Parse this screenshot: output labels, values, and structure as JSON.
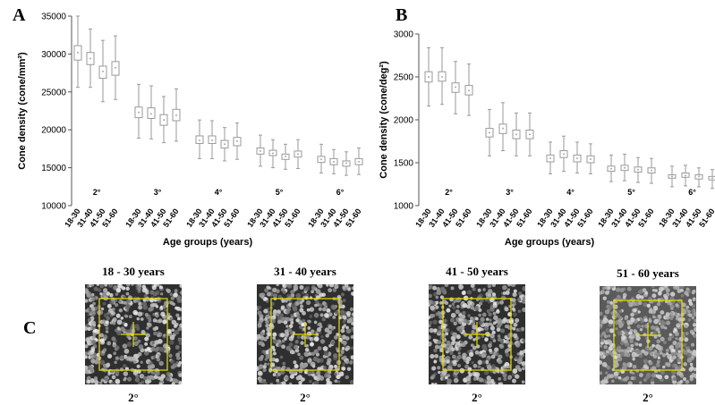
{
  "panels": {
    "a": "A",
    "b": "B",
    "c": "C"
  },
  "chart_data": [
    {
      "type": "boxplot",
      "panel": "A",
      "ylabel": "Cone density (cone/mm²)",
      "xlabel": "Age groups (years)",
      "ylim": [
        10000,
        35000
      ],
      "yticks": [
        "10000",
        "15000",
        "20000",
        "25000",
        "30000",
        "35000"
      ],
      "age_groups": [
        "18-30",
        "31-40",
        "41-50",
        "51-60"
      ],
      "eccentricities": [
        {
          "label": "2°",
          "boxes": [
            {
              "median": 30200,
              "q1": 29200,
              "q3": 31100,
              "min": 25600,
              "max": 35000
            },
            {
              "median": 29400,
              "q1": 28600,
              "q3": 30200,
              "min": 25600,
              "max": 33300
            },
            {
              "median": 27700,
              "q1": 26800,
              "q3": 28400,
              "min": 23700,
              "max": 31800
            },
            {
              "median": 28200,
              "q1": 27200,
              "q3": 29000,
              "min": 24000,
              "max": 32400
            }
          ]
        },
        {
          "label": "3°",
          "boxes": [
            {
              "median": 22300,
              "q1": 21600,
              "q3": 23000,
              "min": 18900,
              "max": 26000
            },
            {
              "median": 22100,
              "q1": 21500,
              "q3": 22900,
              "min": 18800,
              "max": 25800
            },
            {
              "median": 21300,
              "q1": 20600,
              "q3": 22000,
              "min": 18300,
              "max": 24400
            },
            {
              "median": 21900,
              "q1": 21200,
              "q3": 22700,
              "min": 18500,
              "max": 25400
            }
          ]
        },
        {
          "label": "4°",
          "boxes": [
            {
              "median": 18600,
              "q1": 18200,
              "q3": 19200,
              "min": 16200,
              "max": 21300
            },
            {
              "median": 18600,
              "q1": 18200,
              "q3": 19200,
              "min": 16200,
              "max": 21200
            },
            {
              "median": 18100,
              "q1": 17600,
              "q3": 18600,
              "min": 15900,
              "max": 20300
            },
            {
              "median": 18500,
              "q1": 17900,
              "q3": 19000,
              "min": 16100,
              "max": 20900
            }
          ]
        },
        {
          "label": "5°",
          "boxes": [
            {
              "median": 17200,
              "q1": 16800,
              "q3": 17600,
              "min": 15200,
              "max": 19300
            },
            {
              "median": 16900,
              "q1": 16600,
              "q3": 17300,
              "min": 15000,
              "max": 18700
            },
            {
              "median": 16500,
              "q1": 16100,
              "q3": 16800,
              "min": 14800,
              "max": 18100
            },
            {
              "median": 16800,
              "q1": 16400,
              "q3": 17200,
              "min": 14900,
              "max": 18700
            }
          ]
        },
        {
          "label": "6°",
          "boxes": [
            {
              "median": 16100,
              "q1": 15700,
              "q3": 16500,
              "min": 14300,
              "max": 18100
            },
            {
              "median": 15800,
              "q1": 15400,
              "q3": 16200,
              "min": 14200,
              "max": 17400
            },
            {
              "median": 15600,
              "q1": 15200,
              "q3": 15900,
              "min": 14000,
              "max": 17100
            },
            {
              "median": 15800,
              "q1": 15400,
              "q3": 16200,
              "min": 14100,
              "max": 17600
            }
          ]
        }
      ]
    },
    {
      "type": "boxplot",
      "panel": "B",
      "ylabel": "Cone density (cone/deg²)",
      "xlabel": "Age groups (years)",
      "ylim": [
        1000,
        3000
      ],
      "yticks": [
        "1000",
        "1500",
        "2000",
        "2500",
        "3000"
      ],
      "age_groups": [
        "18-30",
        "31-40",
        "41-50",
        "51-60"
      ],
      "eccentricities": [
        {
          "label": "2°",
          "boxes": [
            {
              "median": 2500,
              "q1": 2440,
              "q3": 2560,
              "min": 2160,
              "max": 2840
            },
            {
              "median": 2500,
              "q1": 2450,
              "q3": 2560,
              "min": 2180,
              "max": 2840
            },
            {
              "median": 2380,
              "q1": 2320,
              "q3": 2430,
              "min": 2070,
              "max": 2680
            },
            {
              "median": 2340,
              "q1": 2290,
              "q3": 2400,
              "min": 2050,
              "max": 2650
            }
          ]
        },
        {
          "label": "3°",
          "boxes": [
            {
              "median": 1850,
              "q1": 1800,
              "q3": 1900,
              "min": 1580,
              "max": 2120
            },
            {
              "median": 1900,
              "q1": 1840,
              "q3": 1950,
              "min": 1640,
              "max": 2200
            },
            {
              "median": 1830,
              "q1": 1780,
              "q3": 1880,
              "min": 1580,
              "max": 2080
            },
            {
              "median": 1830,
              "q1": 1780,
              "q3": 1880,
              "min": 1580,
              "max": 2080
            }
          ]
        },
        {
          "label": "4°",
          "boxes": [
            {
              "median": 1550,
              "q1": 1510,
              "q3": 1590,
              "min": 1370,
              "max": 1740
            },
            {
              "median": 1600,
              "q1": 1560,
              "q3": 1640,
              "min": 1400,
              "max": 1810
            },
            {
              "median": 1550,
              "q1": 1510,
              "q3": 1590,
              "min": 1380,
              "max": 1740
            },
            {
              "median": 1540,
              "q1": 1500,
              "q3": 1580,
              "min": 1370,
              "max": 1720
            }
          ]
        },
        {
          "label": "5°",
          "boxes": [
            {
              "median": 1430,
              "q1": 1400,
              "q3": 1460,
              "min": 1280,
              "max": 1590
            },
            {
              "median": 1440,
              "q1": 1410,
              "q3": 1470,
              "min": 1290,
              "max": 1600
            },
            {
              "median": 1420,
              "q1": 1390,
              "q3": 1450,
              "min": 1270,
              "max": 1560
            },
            {
              "median": 1410,
              "q1": 1380,
              "q3": 1440,
              "min": 1260,
              "max": 1550
            }
          ]
        },
        {
          "label": "6°",
          "boxes": [
            {
              "median": 1340,
              "q1": 1320,
              "q3": 1360,
              "min": 1220,
              "max": 1460
            },
            {
              "median": 1350,
              "q1": 1330,
              "q3": 1380,
              "min": 1230,
              "max": 1470
            },
            {
              "median": 1340,
              "q1": 1310,
              "q3": 1360,
              "min": 1220,
              "max": 1440
            },
            {
              "median": 1320,
              "q1": 1300,
              "q3": 1340,
              "min": 1200,
              "max": 1420
            }
          ]
        }
      ]
    }
  ],
  "images": [
    {
      "title": "18 - 30 years",
      "eccentricity": "2°",
      "tone": "dark"
    },
    {
      "title": "31 - 40 years",
      "eccentricity": "2°",
      "tone": "dark"
    },
    {
      "title": "41 - 50 years",
      "eccentricity": "2°",
      "tone": "dark"
    },
    {
      "title": "51 - 60 years",
      "eccentricity": "2°",
      "tone": "gray"
    }
  ],
  "colors": {
    "box": "#9a9a9a",
    "overlay": "#e8e000",
    "axis": "#555555"
  }
}
